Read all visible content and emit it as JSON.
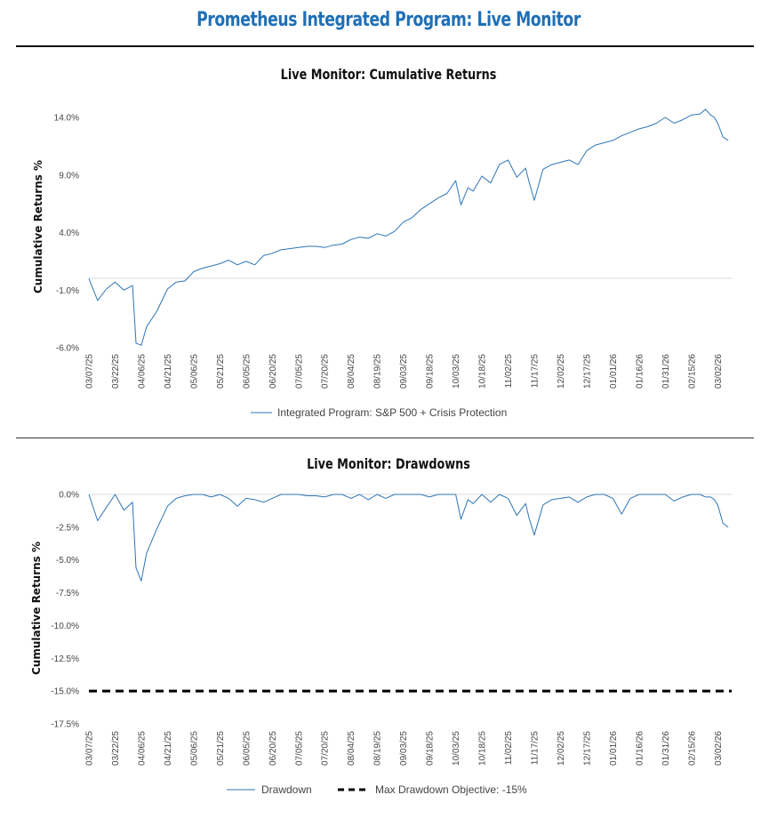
{
  "page": {
    "title": "Prometheus Integrated Program: Live Monitor"
  },
  "colors": {
    "title": "#1f6fb6",
    "series": "#2e75b6",
    "objective": "#000000"
  },
  "chart_data": [
    {
      "type": "line",
      "title": "Live Monitor: Cumulative Returns",
      "ylabel": "Cumulative Returns %",
      "xlabel": "",
      "x_tick_labels": [
        "03/07/25",
        "03/22/25",
        "04/06/25",
        "04/21/25",
        "05/06/25",
        "05/21/25",
        "06/05/25",
        "06/20/25",
        "07/05/25",
        "07/20/25",
        "08/04/25",
        "08/19/25",
        "09/03/25",
        "09/18/25",
        "10/03/25",
        "10/18/25",
        "11/02/25",
        "11/17/25",
        "12/02/25",
        "12/17/25",
        "01/01/26",
        "01/16/26",
        "01/31/26",
        "02/15/26",
        "03/02/26"
      ],
      "y_tick_labels": [
        "14.0%",
        "9.0%",
        "4.0%",
        "-1.0%",
        "-6.0%"
      ],
      "ylim": [
        -6,
        14
      ],
      "grid": false,
      "legend_position": "bottom",
      "series": [
        {
          "name": "Integrated Program: S&P 500 + Crisis Protection",
          "x": [
            "03/07/25",
            "03/12/25",
            "03/17/25",
            "03/22/25",
            "03/27/25",
            "04/01/25",
            "04/03/25",
            "04/06/25",
            "04/09/25",
            "04/15/25",
            "04/21/25",
            "04/26/25",
            "05/01/25",
            "05/06/25",
            "05/11/25",
            "05/16/25",
            "05/21/25",
            "05/26/25",
            "05/31/25",
            "06/05/25",
            "06/10/25",
            "06/15/25",
            "06/20/25",
            "06/25/25",
            "06/30/25",
            "07/05/25",
            "07/10/25",
            "07/15/25",
            "07/20/25",
            "07/25/25",
            "07/30/25",
            "08/04/25",
            "08/09/25",
            "08/14/25",
            "08/19/25",
            "08/24/25",
            "08/29/25",
            "09/03/25",
            "09/08/25",
            "09/13/25",
            "09/18/25",
            "09/23/25",
            "09/28/25",
            "10/03/25",
            "10/06/25",
            "10/10/25",
            "10/13/25",
            "10/18/25",
            "10/23/25",
            "10/28/25",
            "11/02/25",
            "11/07/25",
            "11/12/25",
            "11/14/25",
            "11/17/25",
            "11/22/25",
            "11/27/25",
            "12/02/25",
            "12/07/25",
            "12/12/25",
            "12/17/25",
            "12/22/25",
            "12/27/25",
            "01/01/26",
            "01/06/26",
            "01/11/26",
            "01/16/26",
            "01/21/26",
            "01/26/26",
            "01/31/26",
            "02/05/26",
            "02/10/26",
            "02/15/26",
            "02/20/26",
            "02/23/26",
            "02/26/26",
            "02/28/26",
            "03/02/26",
            "03/05/26",
            "03/08/26"
          ],
          "values": [
            0.0,
            -1.9,
            -0.9,
            -0.3,
            -1.0,
            -0.6,
            -5.6,
            -5.8,
            -4.2,
            -2.8,
            -0.9,
            -0.3,
            -0.2,
            0.6,
            0.9,
            1.1,
            1.3,
            1.6,
            1.2,
            1.5,
            1.2,
            2.0,
            2.2,
            2.5,
            2.6,
            2.7,
            2.8,
            2.8,
            2.7,
            2.9,
            3.0,
            3.4,
            3.6,
            3.5,
            3.9,
            3.7,
            4.1,
            4.9,
            5.3,
            6.0,
            6.5,
            7.0,
            7.4,
            8.5,
            6.4,
            7.9,
            7.6,
            8.9,
            8.3,
            9.9,
            10.3,
            8.8,
            9.6,
            8.4,
            6.8,
            9.5,
            9.9,
            10.1,
            10.3,
            9.9,
            11.1,
            11.6,
            11.8,
            12.0,
            12.4,
            12.7,
            13.0,
            13.2,
            13.5,
            14.0,
            13.5,
            13.8,
            14.2,
            14.3,
            14.7,
            14.2,
            14.0,
            13.5,
            12.3,
            12.0
          ]
        }
      ]
    },
    {
      "type": "line",
      "title": "Live Monitor: Drawdowns",
      "ylabel": "Cumulative Returns %",
      "xlabel": "",
      "x_tick_labels": [
        "03/07/25",
        "03/22/25",
        "04/06/25",
        "04/21/25",
        "05/06/25",
        "05/21/25",
        "06/05/25",
        "06/20/25",
        "07/05/25",
        "07/20/25",
        "08/04/25",
        "08/19/25",
        "09/03/25",
        "09/18/25",
        "10/03/25",
        "10/18/25",
        "11/02/25",
        "11/17/25",
        "12/02/25",
        "12/17/25",
        "01/01/26",
        "01/16/26",
        "01/31/26",
        "02/15/26",
        "03/02/26"
      ],
      "y_tick_labels": [
        "0.0%",
        "-2.5%",
        "-5.0%",
        "-7.5%",
        "-10.0%",
        "-12.5%",
        "-15.0%",
        "-17.5%"
      ],
      "ylim": [
        -17.5,
        0
      ],
      "grid": false,
      "legend_position": "bottom",
      "series": [
        {
          "name": "Drawdown",
          "x": [
            "03/07/25",
            "03/12/25",
            "03/17/25",
            "03/22/25",
            "03/27/25",
            "04/01/25",
            "04/03/25",
            "04/06/25",
            "04/09/25",
            "04/15/25",
            "04/21/25",
            "04/26/25",
            "05/01/25",
            "05/06/25",
            "05/11/25",
            "05/16/25",
            "05/21/25",
            "05/26/25",
            "05/31/25",
            "06/05/25",
            "06/10/25",
            "06/15/25",
            "06/20/25",
            "06/25/25",
            "06/30/25",
            "07/05/25",
            "07/10/25",
            "07/15/25",
            "07/20/25",
            "07/25/25",
            "07/30/25",
            "08/04/25",
            "08/09/25",
            "08/14/25",
            "08/19/25",
            "08/24/25",
            "08/29/25",
            "09/03/25",
            "09/08/25",
            "09/13/25",
            "09/18/25",
            "09/23/25",
            "09/28/25",
            "10/03/25",
            "10/06/25",
            "10/10/25",
            "10/13/25",
            "10/18/25",
            "10/23/25",
            "10/28/25",
            "11/02/25",
            "11/07/25",
            "11/12/25",
            "11/14/25",
            "11/17/25",
            "11/22/25",
            "11/27/25",
            "12/02/25",
            "12/07/25",
            "12/12/25",
            "12/17/25",
            "12/22/25",
            "12/27/25",
            "01/01/26",
            "01/06/26",
            "01/11/26",
            "01/16/26",
            "01/21/26",
            "01/26/26",
            "01/31/26",
            "02/05/26",
            "02/10/26",
            "02/15/26",
            "02/20/26",
            "02/23/26",
            "02/26/26",
            "02/28/26",
            "03/02/26",
            "03/05/26",
            "03/08/26"
          ],
          "values": [
            0.0,
            -2.0,
            -1.0,
            0.0,
            -1.2,
            -0.6,
            -5.6,
            -6.6,
            -4.5,
            -2.6,
            -0.9,
            -0.3,
            -0.1,
            0.0,
            0.0,
            -0.2,
            0.0,
            -0.3,
            -0.9,
            -0.3,
            -0.4,
            -0.6,
            -0.3,
            0.0,
            0.0,
            0.0,
            -0.1,
            -0.1,
            -0.2,
            0.0,
            0.0,
            -0.3,
            0.0,
            -0.4,
            0.0,
            -0.3,
            0.0,
            0.0,
            0.0,
            0.0,
            -0.2,
            0.0,
            0.0,
            0.0,
            -1.9,
            -0.4,
            -0.7,
            0.0,
            -0.6,
            0.0,
            -0.3,
            -1.6,
            -0.7,
            -1.8,
            -3.1,
            -0.8,
            -0.4,
            -0.3,
            -0.2,
            -0.6,
            -0.2,
            0.0,
            0.0,
            -0.3,
            -1.5,
            -0.3,
            0.0,
            0.0,
            0.0,
            0.0,
            -0.5,
            -0.2,
            0.0,
            0.0,
            -0.2,
            -0.2,
            -0.4,
            -0.8,
            -2.2,
            -2.5
          ]
        },
        {
          "name": "Max Drawdown Objective: -15%",
          "value": -15.0,
          "style": "dashed"
        }
      ]
    }
  ]
}
